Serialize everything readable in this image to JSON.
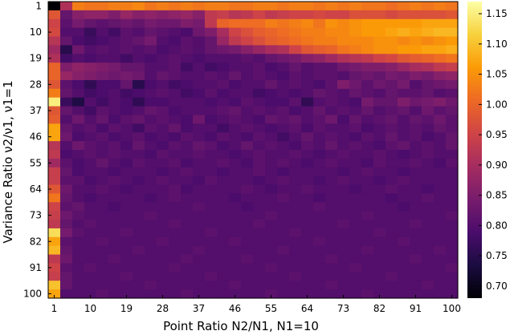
{
  "chart_data": {
    "type": "heatmap",
    "title": "",
    "xlabel": "Point Ratio N2/N1, N1=10",
    "ylabel": "Variance Ratio ν2/ν1, ν1=1",
    "x_tick_labels": [
      "1",
      "10",
      "19",
      "28",
      "37",
      "46",
      "55",
      "64",
      "73",
      "82",
      "91",
      "100"
    ],
    "y_tick_labels": [
      "1",
      "10",
      "19",
      "28",
      "37",
      "46",
      "55",
      "64",
      "73",
      "82",
      "91",
      "100"
    ],
    "x_tick_cols": [
      0,
      3,
      6,
      9,
      12,
      15,
      18,
      21,
      24,
      27,
      30,
      33
    ],
    "y_tick_rows": [
      0,
      3,
      6,
      9,
      12,
      15,
      18,
      21,
      24,
      27,
      30,
      33
    ],
    "colorbar": {
      "range": [
        0.68,
        1.17
      ],
      "tick_values": [
        0.7,
        0.75,
        0.8,
        0.85,
        0.9,
        0.95,
        1.0,
        1.05,
        1.1,
        1.15
      ],
      "tick_labels": [
        "0.70",
        "0.75",
        "0.80",
        "0.85",
        "0.90",
        "0.95",
        "1.00",
        "1.05",
        "1.10",
        "1.15"
      ]
    },
    "colormap": "inferno",
    "colormap_stops": [
      "#000004",
      "#1b0c41",
      "#4a0c6b",
      "#781c6d",
      "#a52c60",
      "#cf4446",
      "#ed6925",
      "#fb9b06",
      "#f7d13d",
      "#fcffa4"
    ],
    "grid": false,
    "n_cols": 34,
    "n_rows": 34,
    "values": [
      [
        0.68,
        0.91,
        1.03,
        1.02,
        1.02,
        1.03,
        1.03,
        1.04,
        1.02,
        1.03,
        1.02,
        1.03,
        1.02,
        1.03,
        1.03,
        1.02,
        1.02,
        1.03,
        1.03,
        1.02,
        1.03,
        1.03,
        1.02,
        1.03,
        1.02,
        1.03,
        1.02,
        1.02,
        1.01,
        1.02,
        1.03,
        1.02,
        1.03,
        1.02
      ],
      [
        0.98,
        0.82,
        0.86,
        0.87,
        0.87,
        0.85,
        0.88,
        0.86,
        0.87,
        0.86,
        0.87,
        0.88,
        0.86,
        0.93,
        0.94,
        0.92,
        0.93,
        0.95,
        0.93,
        0.94,
        0.95,
        0.95,
        0.96,
        0.95,
        0.95,
        0.97,
        0.97,
        0.97,
        0.96,
        0.97,
        0.97,
        0.97,
        0.97,
        0.98
      ],
      [
        0.95,
        0.81,
        0.84,
        0.82,
        0.81,
        0.82,
        0.83,
        0.82,
        0.84,
        0.83,
        0.83,
        0.85,
        0.84,
        0.93,
        1.0,
        1.01,
        1.01,
        1.01,
        1.03,
        1.02,
        1.03,
        1.04,
        1.02,
        1.05,
        1.04,
        1.05,
        1.06,
        1.06,
        1.06,
        1.06,
        1.06,
        1.07,
        1.07,
        1.07
      ],
      [
        0.96,
        0.8,
        0.8,
        0.77,
        0.8,
        0.78,
        0.81,
        0.8,
        0.82,
        0.81,
        0.8,
        0.79,
        0.83,
        0.85,
        0.9,
        0.95,
        0.97,
        0.99,
        1.0,
        1.01,
        1.02,
        1.03,
        1.03,
        1.04,
        1.04,
        1.05,
        1.06,
        1.06,
        1.07,
        1.08,
        1.07,
        1.08,
        1.09,
        1.09
      ],
      [
        0.92,
        0.82,
        0.79,
        0.78,
        0.79,
        0.8,
        0.81,
        0.82,
        0.84,
        0.8,
        0.79,
        0.81,
        0.8,
        0.82,
        0.88,
        0.93,
        0.95,
        0.97,
        0.99,
        1.0,
        1.01,
        1.02,
        1.03,
        1.03,
        1.04,
        1.04,
        1.04,
        1.05,
        1.05,
        1.04,
        1.05,
        1.04,
        1.05,
        1.06
      ],
      [
        0.89,
        0.75,
        0.83,
        0.8,
        0.81,
        0.8,
        0.81,
        0.8,
        0.81,
        0.79,
        0.8,
        0.81,
        0.8,
        0.82,
        0.83,
        0.84,
        0.86,
        0.88,
        0.9,
        0.91,
        0.95,
        0.98,
        0.99,
        1.0,
        1.02,
        1.03,
        1.04,
        1.05,
        1.05,
        1.06,
        1.06,
        1.07,
        1.07,
        1.08
      ],
      [
        0.91,
        0.78,
        0.8,
        0.79,
        0.8,
        0.8,
        0.78,
        0.8,
        0.79,
        0.8,
        0.81,
        0.8,
        0.79,
        0.8,
        0.8,
        0.8,
        0.81,
        0.8,
        0.82,
        0.83,
        0.84,
        0.86,
        0.87,
        0.89,
        0.91,
        0.92,
        0.93,
        0.95,
        0.96,
        0.98,
        0.99,
        1.0,
        1.01,
        1.02
      ],
      [
        1.0,
        0.85,
        0.87,
        0.86,
        0.85,
        0.84,
        0.82,
        0.82,
        0.8,
        0.8,
        0.81,
        0.78,
        0.8,
        0.78,
        0.79,
        0.8,
        0.8,
        0.81,
        0.79,
        0.8,
        0.82,
        0.8,
        0.81,
        0.81,
        0.83,
        0.84,
        0.85,
        0.85,
        0.86,
        0.88,
        0.9,
        0.91,
        0.93,
        0.94
      ],
      [
        1.0,
        0.88,
        0.86,
        0.85,
        0.84,
        0.83,
        0.84,
        0.83,
        0.8,
        0.82,
        0.81,
        0.8,
        0.8,
        0.81,
        0.8,
        0.82,
        0.8,
        0.81,
        0.8,
        0.79,
        0.81,
        0.8,
        0.81,
        0.81,
        0.8,
        0.82,
        0.83,
        0.82,
        0.84,
        0.83,
        0.85,
        0.84,
        0.86,
        0.87
      ],
      [
        0.98,
        0.81,
        0.79,
        0.76,
        0.79,
        0.79,
        0.82,
        0.75,
        0.79,
        0.8,
        0.78,
        0.79,
        0.8,
        0.8,
        0.81,
        0.79,
        0.8,
        0.8,
        0.82,
        0.8,
        0.81,
        0.8,
        0.79,
        0.81,
        0.85,
        0.83,
        0.81,
        0.83,
        0.82,
        0.84,
        0.8,
        0.82,
        0.83,
        0.84
      ],
      [
        1.03,
        0.82,
        0.8,
        0.78,
        0.79,
        0.8,
        0.78,
        0.79,
        0.8,
        0.81,
        0.8,
        0.78,
        0.79,
        0.81,
        0.79,
        0.8,
        0.8,
        0.78,
        0.79,
        0.8,
        0.79,
        0.8,
        0.82,
        0.81,
        0.8,
        0.82,
        0.81,
        0.8,
        0.82,
        0.81,
        0.81,
        0.82,
        0.8,
        0.81
      ],
      [
        1.15,
        0.77,
        0.74,
        0.8,
        0.78,
        0.8,
        0.79,
        0.76,
        0.79,
        0.79,
        0.8,
        0.8,
        0.8,
        0.79,
        0.8,
        0.79,
        0.81,
        0.8,
        0.79,
        0.79,
        0.81,
        0.76,
        0.8,
        0.81,
        0.8,
        0.79,
        0.84,
        0.82,
        0.82,
        0.85,
        0.83,
        0.84,
        0.85,
        0.83
      ],
      [
        0.98,
        0.82,
        0.8,
        0.78,
        0.81,
        0.8,
        0.79,
        0.8,
        0.82,
        0.81,
        0.79,
        0.8,
        0.8,
        0.8,
        0.81,
        0.82,
        0.8,
        0.81,
        0.8,
        0.81,
        0.79,
        0.8,
        0.82,
        0.8,
        0.81,
        0.8,
        0.82,
        0.8,
        0.81,
        0.82,
        0.8,
        0.83,
        0.81,
        0.82
      ],
      [
        0.99,
        0.8,
        0.83,
        0.8,
        0.82,
        0.79,
        0.81,
        0.82,
        0.8,
        0.81,
        0.8,
        0.79,
        0.83,
        0.79,
        0.8,
        0.81,
        0.8,
        0.79,
        0.82,
        0.81,
        0.82,
        0.8,
        0.81,
        0.83,
        0.79,
        0.82,
        0.8,
        0.81,
        0.82,
        0.8,
        0.82,
        0.81,
        0.83,
        0.81
      ],
      [
        1.07,
        0.82,
        0.8,
        0.81,
        0.79,
        0.81,
        0.8,
        0.78,
        0.81,
        0.8,
        0.82,
        0.79,
        0.8,
        0.8,
        0.78,
        0.8,
        0.81,
        0.8,
        0.79,
        0.8,
        0.81,
        0.79,
        0.81,
        0.8,
        0.8,
        0.81,
        0.79,
        0.8,
        0.81,
        0.8,
        0.81,
        0.8,
        0.82,
        0.81
      ],
      [
        1.07,
        0.83,
        0.79,
        0.8,
        0.81,
        0.79,
        0.8,
        0.81,
        0.79,
        0.8,
        0.79,
        0.81,
        0.8,
        0.79,
        0.81,
        0.8,
        0.79,
        0.81,
        0.8,
        0.78,
        0.8,
        0.82,
        0.8,
        0.81,
        0.8,
        0.79,
        0.81,
        0.8,
        0.82,
        0.8,
        0.81,
        0.79,
        0.8,
        0.82
      ],
      [
        0.92,
        0.8,
        0.83,
        0.81,
        0.8,
        0.81,
        0.79,
        0.82,
        0.8,
        0.79,
        0.81,
        0.8,
        0.82,
        0.81,
        0.79,
        0.8,
        0.82,
        0.8,
        0.81,
        0.8,
        0.79,
        0.81,
        0.8,
        0.82,
        0.8,
        0.81,
        0.8,
        0.79,
        0.81,
        0.82,
        0.8,
        0.81,
        0.8,
        0.82
      ],
      [
        0.93,
        0.79,
        0.8,
        0.81,
        0.8,
        0.81,
        0.8,
        0.8,
        0.79,
        0.81,
        0.8,
        0.8,
        0.81,
        0.8,
        0.8,
        0.79,
        0.8,
        0.81,
        0.8,
        0.8,
        0.81,
        0.8,
        0.79,
        0.8,
        0.81,
        0.8,
        0.8,
        0.81,
        0.8,
        0.79,
        0.8,
        0.81,
        0.8,
        0.8
      ],
      [
        0.89,
        0.81,
        0.79,
        0.8,
        0.82,
        0.8,
        0.79,
        0.81,
        0.8,
        0.8,
        0.81,
        0.79,
        0.8,
        0.8,
        0.81,
        0.8,
        0.79,
        0.81,
        0.8,
        0.81,
        0.8,
        0.79,
        0.8,
        0.81,
        0.8,
        0.8,
        0.79,
        0.81,
        0.8,
        0.8,
        0.81,
        0.8,
        0.79,
        0.81
      ],
      [
        0.94,
        0.82,
        0.79,
        0.8,
        0.8,
        0.79,
        0.8,
        0.8,
        0.8,
        0.79,
        0.8,
        0.81,
        0.8,
        0.8,
        0.79,
        0.8,
        0.8,
        0.81,
        0.8,
        0.79,
        0.8,
        0.8,
        0.8,
        0.8,
        0.79,
        0.8,
        0.81,
        0.8,
        0.8,
        0.79,
        0.8,
        0.8,
        0.8,
        0.8
      ],
      [
        0.94,
        0.81,
        0.81,
        0.79,
        0.8,
        0.81,
        0.8,
        0.79,
        0.8,
        0.81,
        0.8,
        0.8,
        0.79,
        0.81,
        0.8,
        0.8,
        0.8,
        0.79,
        0.8,
        0.81,
        0.8,
        0.8,
        0.79,
        0.8,
        0.81,
        0.8,
        0.8,
        0.79,
        0.8,
        0.81,
        0.8,
        0.8,
        0.8,
        0.8
      ],
      [
        0.98,
        0.83,
        0.8,
        0.8,
        0.81,
        0.8,
        0.79,
        0.8,
        0.8,
        0.8,
        0.81,
        0.79,
        0.8,
        0.8,
        0.8,
        0.8,
        0.81,
        0.8,
        0.79,
        0.8,
        0.8,
        0.81,
        0.8,
        0.8,
        0.8,
        0.79,
        0.8,
        0.8,
        0.81,
        0.8,
        0.8,
        0.79,
        0.8,
        0.8
      ],
      [
        1.02,
        0.82,
        0.8,
        0.79,
        0.8,
        0.8,
        0.8,
        0.8,
        0.79,
        0.8,
        0.81,
        0.8,
        0.8,
        0.8,
        0.8,
        0.79,
        0.8,
        0.8,
        0.8,
        0.81,
        0.8,
        0.8,
        0.79,
        0.8,
        0.8,
        0.8,
        0.8,
        0.8,
        0.79,
        0.8,
        0.8,
        0.81,
        0.8,
        0.8
      ],
      [
        0.95,
        0.81,
        0.82,
        0.8,
        0.8,
        0.79,
        0.8,
        0.8,
        0.8,
        0.8,
        0.8,
        0.8,
        0.81,
        0.8,
        0.8,
        0.8,
        0.79,
        0.8,
        0.8,
        0.8,
        0.8,
        0.8,
        0.81,
        0.8,
        0.8,
        0.8,
        0.8,
        0.8,
        0.8,
        0.79,
        0.8,
        0.8,
        0.8,
        0.8
      ],
      [
        0.94,
        0.83,
        0.81,
        0.8,
        0.8,
        0.8,
        0.8,
        0.8,
        0.81,
        0.8,
        0.8,
        0.8,
        0.8,
        0.8,
        0.8,
        0.8,
        0.8,
        0.8,
        0.81,
        0.8,
        0.8,
        0.8,
        0.8,
        0.8,
        0.8,
        0.8,
        0.81,
        0.8,
        0.8,
        0.8,
        0.8,
        0.8,
        0.8,
        0.81
      ],
      [
        0.93,
        0.82,
        0.8,
        0.81,
        0.8,
        0.8,
        0.8,
        0.8,
        0.8,
        0.8,
        0.81,
        0.8,
        0.8,
        0.8,
        0.8,
        0.8,
        0.8,
        0.81,
        0.8,
        0.8,
        0.8,
        0.8,
        0.8,
        0.8,
        0.81,
        0.8,
        0.8,
        0.8,
        0.8,
        0.8,
        0.81,
        0.8,
        0.8,
        0.8
      ],
      [
        1.13,
        0.84,
        0.81,
        0.8,
        0.8,
        0.8,
        0.81,
        0.8,
        0.8,
        0.8,
        0.8,
        0.8,
        0.8,
        0.81,
        0.8,
        0.8,
        0.8,
        0.8,
        0.8,
        0.8,
        0.81,
        0.8,
        0.8,
        0.8,
        0.8,
        0.8,
        0.8,
        0.81,
        0.8,
        0.8,
        0.8,
        0.8,
        0.8,
        0.8
      ],
      [
        1.07,
        0.81,
        0.8,
        0.8,
        0.81,
        0.8,
        0.8,
        0.8,
        0.8,
        0.81,
        0.8,
        0.8,
        0.8,
        0.8,
        0.8,
        0.81,
        0.8,
        0.8,
        0.8,
        0.8,
        0.8,
        0.8,
        0.81,
        0.8,
        0.8,
        0.8,
        0.8,
        0.8,
        0.8,
        0.81,
        0.8,
        0.8,
        0.8,
        0.8
      ],
      [
        1.09,
        0.82,
        0.8,
        0.8,
        0.8,
        0.8,
        0.8,
        0.81,
        0.8,
        0.8,
        0.8,
        0.8,
        0.81,
        0.8,
        0.8,
        0.8,
        0.8,
        0.8,
        0.8,
        0.81,
        0.8,
        0.8,
        0.8,
        0.8,
        0.8,
        0.8,
        0.81,
        0.8,
        0.8,
        0.8,
        0.8,
        0.8,
        0.81,
        0.8
      ],
      [
        0.93,
        0.83,
        0.8,
        0.8,
        0.8,
        0.81,
        0.8,
        0.8,
        0.8,
        0.8,
        0.8,
        0.81,
        0.8,
        0.8,
        0.8,
        0.8,
        0.81,
        0.8,
        0.8,
        0.8,
        0.8,
        0.8,
        0.8,
        0.81,
        0.8,
        0.8,
        0.8,
        0.8,
        0.8,
        0.8,
        0.81,
        0.8,
        0.8,
        0.8
      ],
      [
        0.95,
        0.81,
        0.8,
        0.81,
        0.8,
        0.8,
        0.8,
        0.8,
        0.8,
        0.8,
        0.81,
        0.8,
        0.8,
        0.8,
        0.8,
        0.8,
        0.8,
        0.8,
        0.81,
        0.8,
        0.8,
        0.8,
        0.8,
        0.8,
        0.8,
        0.81,
        0.8,
        0.8,
        0.8,
        0.8,
        0.8,
        0.8,
        0.8,
        0.81
      ],
      [
        0.94,
        0.82,
        0.8,
        0.8,
        0.8,
        0.8,
        0.81,
        0.8,
        0.8,
        0.8,
        0.8,
        0.8,
        0.8,
        0.81,
        0.8,
        0.8,
        0.8,
        0.8,
        0.8,
        0.8,
        0.81,
        0.8,
        0.8,
        0.8,
        0.8,
        0.8,
        0.8,
        0.8,
        0.81,
        0.8,
        0.8,
        0.8,
        0.8,
        0.8
      ],
      [
        1.1,
        0.82,
        0.8,
        0.8,
        0.8,
        0.8,
        0.8,
        0.8,
        0.81,
        0.8,
        0.8,
        0.8,
        0.8,
        0.8,
        0.8,
        0.81,
        0.8,
        0.8,
        0.8,
        0.8,
        0.8,
        0.8,
        0.8,
        0.81,
        0.8,
        0.8,
        0.8,
        0.8,
        0.8,
        0.8,
        0.8,
        0.81,
        0.8,
        0.8
      ],
      [
        1.07,
        0.8,
        0.8,
        0.8,
        0.81,
        0.8,
        0.8,
        0.8,
        0.8,
        0.8,
        0.8,
        0.81,
        0.8,
        0.8,
        0.8,
        0.8,
        0.8,
        0.8,
        0.81,
        0.8,
        0.8,
        0.8,
        0.8,
        0.8,
        0.8,
        0.8,
        0.81,
        0.8,
        0.8,
        0.8,
        0.8,
        0.8,
        0.8,
        0.8
      ]
    ]
  }
}
